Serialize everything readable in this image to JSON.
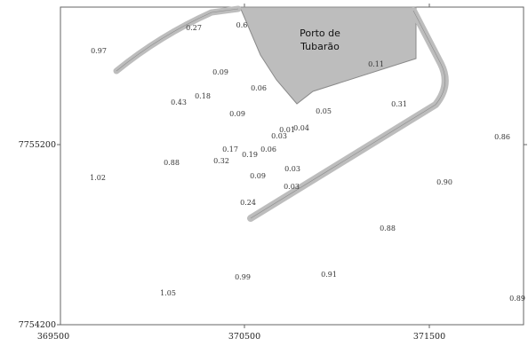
{
  "map": {
    "port_label_line1": "Porto de",
    "port_label_line2": "Tubarão",
    "x_ticks": [
      "369500",
      "370500",
      "371500"
    ],
    "y_ticks": [
      "7755200",
      "7754200"
    ],
    "colors": {
      "land": "#bdbdbd",
      "outline": "#8a8a8a",
      "frame": "#666666"
    },
    "stations": [
      {
        "v": "0.97"
      },
      {
        "v": "0.27"
      },
      {
        "v": "0.6"
      },
      {
        "v": "0.11"
      },
      {
        "v": "0.09"
      },
      {
        "v": "0.06"
      },
      {
        "v": "0.43"
      },
      {
        "v": "0.18"
      },
      {
        "v": "0.09"
      },
      {
        "v": "0.05"
      },
      {
        "v": "0.31"
      },
      {
        "v": "0.04"
      },
      {
        "v": "0.01"
      },
      {
        "v": "0.03"
      },
      {
        "v": "0.06"
      },
      {
        "v": "0.17"
      },
      {
        "v": "0.19"
      },
      {
        "v": "0.32"
      },
      {
        "v": "0.88"
      },
      {
        "v": "0.86"
      },
      {
        "v": "1.02"
      },
      {
        "v": "0.03"
      },
      {
        "v": "0.09"
      },
      {
        "v": "0.03"
      },
      {
        "v": "0.90"
      },
      {
        "v": "0.24"
      },
      {
        "v": "0.88"
      },
      {
        "v": "0.99"
      },
      {
        "v": "0.91"
      },
      {
        "v": "1.05"
      },
      {
        "v": "0.89"
      }
    ]
  }
}
